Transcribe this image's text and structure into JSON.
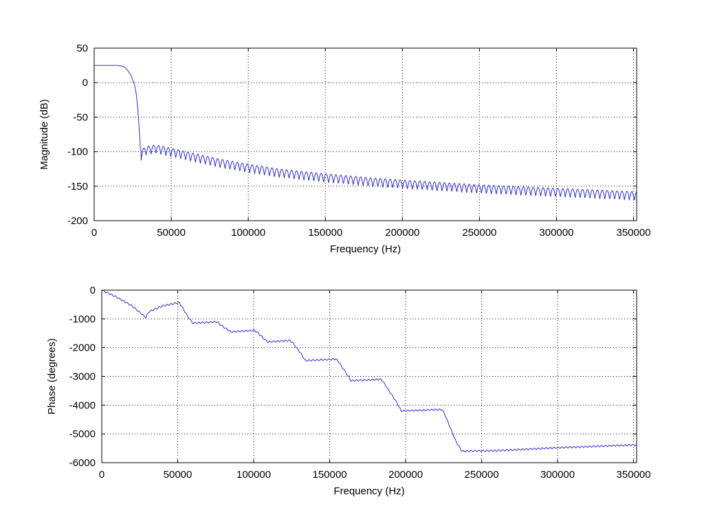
{
  "chart_data": [
    {
      "type": "line",
      "title": "",
      "xlabel": "Frequency (Hz)",
      "ylabel": "Magnitude (dB)",
      "xlim": [
        0,
        352000
      ],
      "ylim": [
        -200,
        50
      ],
      "xticks": [
        0,
        50000,
        100000,
        150000,
        200000,
        250000,
        300000,
        350000
      ],
      "xtick_labels": [
        "0",
        "50000",
        "100000",
        "150000",
        "200000",
        "250000",
        "300000",
        "350000"
      ],
      "yticks": [
        -200,
        -150,
        -100,
        -50,
        0,
        50
      ],
      "ytick_labels": [
        "-200",
        "-150",
        "-100",
        "-50",
        "0",
        "50"
      ],
      "grid": true,
      "color": "#2b2bd6",
      "series": [
        {
          "x": [
            0,
            5000,
            10000,
            15000,
            18000,
            20000,
            22000,
            24000,
            26000,
            27000,
            28000,
            29000,
            30000,
            30500,
            31000,
            33000,
            35000,
            40000,
            50000,
            60000,
            80000,
            100000,
            120000,
            150000,
            180000,
            200000,
            250000,
            300000,
            352000
          ],
          "y": [
            25,
            25,
            25,
            25,
            24,
            22,
            17,
            10,
            -2,
            -12,
            -30,
            -60,
            -95,
            -100,
            -97,
            -93,
            -92,
            -90,
            -95,
            -100,
            -110,
            -118,
            -125,
            -132,
            -138,
            -141,
            -148,
            -153,
            -158
          ],
          "ripple": 14
        }
      ]
    },
    {
      "type": "line",
      "title": "",
      "xlabel": "Frequency (Hz)",
      "ylabel": "Phase (degrees)",
      "xlim": [
        0,
        352000
      ],
      "ylim": [
        -6000,
        0
      ],
      "xticks": [
        0,
        50000,
        100000,
        150000,
        200000,
        250000,
        300000,
        350000
      ],
      "xtick_labels": [
        "0",
        "50000",
        "100000",
        "150000",
        "200000",
        "250000",
        "300000",
        "350000"
      ],
      "yticks": [
        -6000,
        -5000,
        -4000,
        -3000,
        -2000,
        -1000,
        0
      ],
      "ytick_labels": [
        "-6000",
        "-5000",
        "-4000",
        "-3000",
        "-2000",
        "-1000",
        "0"
      ],
      "grid": true,
      "color": "#2b2bd6",
      "series": [
        {
          "x": [
            0,
            10000,
            20000,
            29000,
            31000,
            40000,
            51000,
            53000,
            57000,
            60000,
            76000,
            78000,
            82000,
            85000,
            100000,
            102000,
            106000,
            109000,
            124000,
            126000,
            131000,
            134000,
            154000,
            156000,
            161000,
            164000,
            184000,
            186000,
            194000,
            197000,
            224000,
            226000,
            233000,
            237000,
            260000,
            300000,
            352000
          ],
          "y": [
            0,
            -250,
            -550,
            -950,
            -750,
            -550,
            -430,
            -600,
            -950,
            -1150,
            -1100,
            -1200,
            -1350,
            -1450,
            -1400,
            -1450,
            -1650,
            -1800,
            -1750,
            -1850,
            -2200,
            -2450,
            -2400,
            -2500,
            -2900,
            -3150,
            -3100,
            -3250,
            -3900,
            -4200,
            -4150,
            -4350,
            -5250,
            -5600,
            -5580,
            -5480,
            -5380
          ],
          "ripple": 60
        }
      ]
    }
  ]
}
